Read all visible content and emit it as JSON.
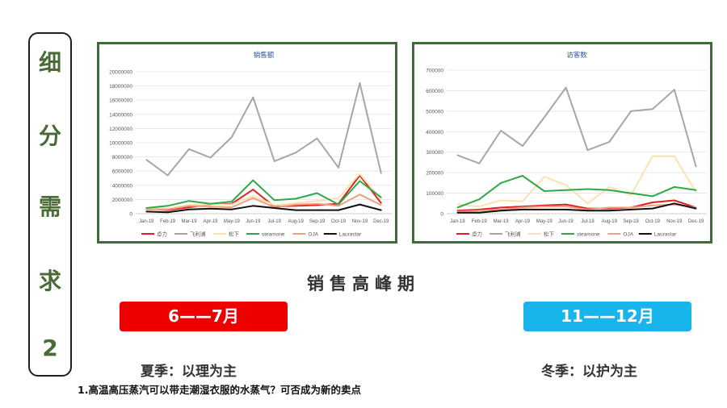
{
  "sidebar": {
    "chars": [
      "细",
      "分",
      "需",
      "求",
      "2"
    ]
  },
  "heading": "销售高峰期",
  "periods": [
    {
      "label": "6——7月",
      "color": "#ee0000",
      "season": "夏季：以理为主"
    },
    {
      "label": "11——12月",
      "color": "#18b4ec",
      "season": "冬季：以护为主"
    }
  ],
  "note": "1.高温高压蒸汽可以带走潮湿衣服的水蒸气？可否成为新的卖点",
  "chart_data": [
    {
      "type": "line",
      "title": "销售额",
      "categories": [
        "Jan-19",
        "Feb-19",
        "Mar-19",
        "Apr-19",
        "May-19",
        "Jun-19",
        "Jul-19",
        "Aug-19",
        "Sep-19",
        "Oct-19",
        "Nov-19",
        "Dec-19"
      ],
      "ylim": [
        0,
        20000000
      ],
      "yticks": [
        "0",
        "2000000",
        "4000000",
        "6000000",
        "8000000",
        "10000000",
        "12000000",
        "14000000",
        "16000000",
        "18000000",
        "20000000"
      ],
      "grid": true,
      "legend_position": "bottom",
      "series": [
        {
          "name": "卓力",
          "color": "#e02020",
          "values": [
            700000,
            500000,
            900000,
            1300000,
            1400000,
            3400000,
            1000000,
            1100000,
            1200000,
            1400000,
            5400000,
            1500000
          ]
        },
        {
          "name": "飞利浦",
          "color": "#a6a6a6",
          "values": [
            7600000,
            5400000,
            9100000,
            7900000,
            10800000,
            16400000,
            7400000,
            8600000,
            10600000,
            6500000,
            18400000,
            5700000
          ]
        },
        {
          "name": "松下",
          "color": "#fbe2b0",
          "values": [
            800000,
            700000,
            1200000,
            1300000,
            1300000,
            2500000,
            1200000,
            1500000,
            1800000,
            2200000,
            5600000,
            2000000
          ]
        },
        {
          "name": "steamone",
          "color": "#2ea84a",
          "values": [
            800000,
            1100000,
            1800000,
            1400000,
            1700000,
            4700000,
            1900000,
            2100000,
            2900000,
            1300000,
            4600000,
            2300000
          ]
        },
        {
          "name": "OJA",
          "color": "#f0a080",
          "values": [
            600000,
            600000,
            1100000,
            1000000,
            900000,
            2200000,
            900000,
            1300000,
            1400000,
            1100000,
            2700000,
            1200000
          ]
        },
        {
          "name": "Laurastar",
          "color": "#111111",
          "values": [
            300000,
            200000,
            600000,
            700000,
            600000,
            1100000,
            800000,
            500000,
            500000,
            500000,
            1300000,
            500000
          ]
        }
      ]
    },
    {
      "type": "line",
      "title": "访客数",
      "categories": [
        "Jan-19",
        "Feb-19",
        "Mar-19",
        "Apr-19",
        "May-19",
        "Jun-19",
        "Jul-19",
        "Aug-19",
        "Sep-19",
        "Oct-19",
        "Nov-19",
        "Dec-19"
      ],
      "ylim": [
        0,
        700000
      ],
      "yticks": [
        "0",
        "100000",
        "200000",
        "300000",
        "400000",
        "500000",
        "600000",
        "700000"
      ],
      "grid": true,
      "legend_position": "bottom",
      "series": [
        {
          "name": "卓力",
          "color": "#e02020",
          "values": [
            15000,
            20000,
            30000,
            35000,
            40000,
            45000,
            25000,
            25000,
            30000,
            55000,
            65000,
            30000
          ]
        },
        {
          "name": "飞利浦",
          "color": "#a6a6a6",
          "values": [
            285000,
            245000,
            405000,
            330000,
            470000,
            615000,
            310000,
            350000,
            500000,
            510000,
            605000,
            230000
          ]
        },
        {
          "name": "松下",
          "color": "#fbe2b0",
          "values": [
            45000,
            35000,
            65000,
            60000,
            180000,
            140000,
            50000,
            130000,
            90000,
            280000,
            280000,
            105000
          ]
        },
        {
          "name": "steamone",
          "color": "#2ea84a",
          "values": [
            30000,
            70000,
            150000,
            185000,
            110000,
            115000,
            120000,
            115000,
            100000,
            85000,
            130000,
            115000
          ]
        },
        {
          "name": "OJA",
          "color": "#f0a080",
          "values": [
            10000,
            15000,
            20000,
            30000,
            35000,
            35000,
            20000,
            30000,
            30000,
            40000,
            45000,
            30000
          ]
        },
        {
          "name": "Laurastar",
          "color": "#111111",
          "values": [
            5000,
            5000,
            15000,
            20000,
            20000,
            20000,
            15000,
            15000,
            20000,
            25000,
            50000,
            25000
          ]
        }
      ]
    }
  ]
}
